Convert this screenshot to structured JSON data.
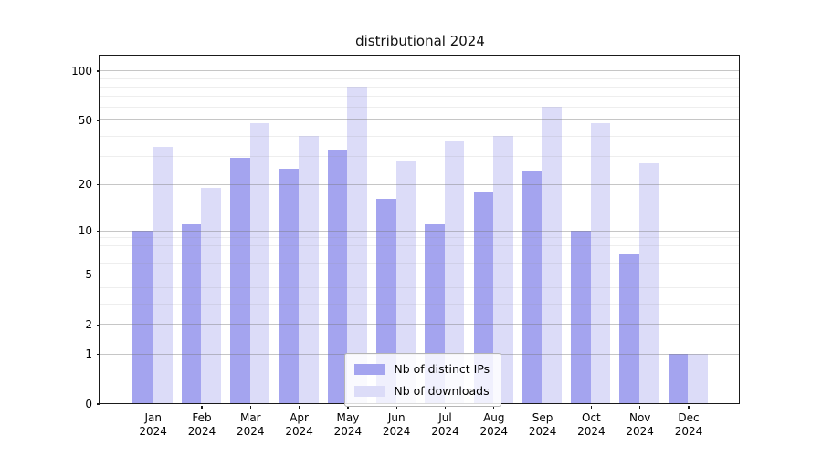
{
  "chart_data": {
    "type": "bar",
    "title": "distributional 2024",
    "categories": [
      "Jan",
      "Feb",
      "Mar",
      "Apr",
      "May",
      "Jun",
      "Jul",
      "Aug",
      "Sep",
      "Oct",
      "Nov",
      "Dec"
    ],
    "category_year": "2024",
    "series": [
      {
        "name": "Nb of distinct IPs",
        "color": "#a4a4ef",
        "values": [
          10,
          11,
          29,
          25,
          33,
          16,
          11,
          18,
          24,
          10,
          7,
          1
        ]
      },
      {
        "name": "Nb of downloads",
        "color": "#dcdcf8",
        "values": [
          34,
          19,
          48,
          40,
          80,
          28,
          37,
          40,
          60,
          48,
          27,
          1
        ]
      }
    ],
    "yscale": "log1p",
    "y_tick_labels": [
      "0",
      "1",
      "2",
      "5",
      "10",
      "20",
      "50",
      "100"
    ],
    "y_major_ticks": [
      0,
      1,
      2,
      5,
      10,
      20,
      50,
      100
    ],
    "y_minor_ticks": [
      3,
      4,
      6,
      7,
      8,
      9,
      30,
      40,
      60,
      70,
      80,
      90
    ],
    "ylim": [
      0,
      122
    ],
    "grid": "horizontal major and minor, drawn over bars",
    "legend_position": "lower center"
  },
  "colors": {
    "bar_distinct_ips": "#a4a4ef",
    "bar_downloads": "#dcdcf8",
    "spine": "#1a1a1a",
    "text": "#000000",
    "legend_border": "#b5b5b5"
  }
}
